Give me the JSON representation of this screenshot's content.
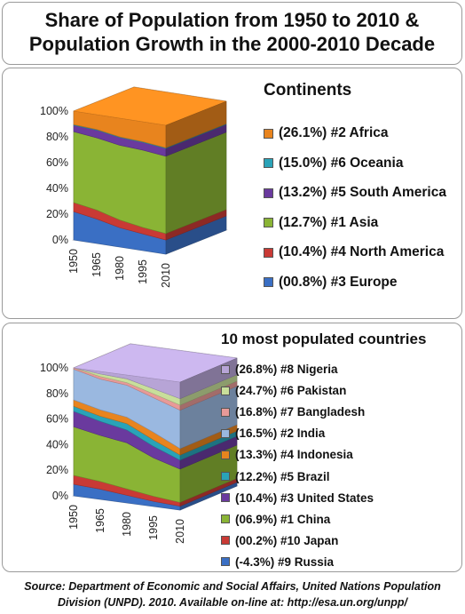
{
  "title": {
    "line1": "Share of Population from 1950 to 2010 &",
    "line2": "Population Growth in the 2000-2010 Decade"
  },
  "chart_data": [
    {
      "type": "area",
      "title": "Continents",
      "stacked_percent": true,
      "three_d": true,
      "x": [
        "1950",
        "1965",
        "1980",
        "1995",
        "2010"
      ],
      "y_ticks": [
        "0%",
        "20%",
        "40%",
        "60%",
        "80%",
        "100%"
      ],
      "ylim": [
        0,
        100
      ],
      "series": [
        {
          "name": "(00.8%) #3 Europe",
          "color": "#3a6fc4",
          "values": [
            22,
            19,
            15,
            13,
            11
          ]
        },
        {
          "name": "(10.4%) #4 North America",
          "color": "#c93a35",
          "values": [
            7,
            7,
            6,
            5,
            5
          ]
        },
        {
          "name": "(12.7%) #1 Asia",
          "color": "#8ab435",
          "values": [
            55,
            56,
            58,
            60,
            60
          ]
        },
        {
          "name": "(13.2%) #5 South America",
          "color": "#6a3a9e",
          "values": [
            5,
            6,
            6,
            6,
            6
          ]
        },
        {
          "name": "(15.0%) #6 Oceania",
          "color": "#2aa3b8",
          "values": [
            0.5,
            0.5,
            0.5,
            0.5,
            0.5
          ]
        },
        {
          "name": "(26.1%) #2 Africa",
          "color": "#e8841e",
          "values": [
            10.5,
            11.5,
            14.5,
            15.5,
            17.5
          ]
        }
      ],
      "legend_order": [
        "(26.1%) #2 Africa",
        "(15.0%) #6 Oceania",
        "(13.2%) #5 South America",
        "(12.7%) #1 Asia",
        "(10.4%) #4 North America",
        "(00.8%) #3 Europe"
      ]
    },
    {
      "type": "area",
      "title": "10 most populated countries",
      "stacked_percent": true,
      "three_d": true,
      "x": [
        "1950",
        "1965",
        "1980",
        "1995",
        "2010"
      ],
      "y_ticks": [
        "0%",
        "20%",
        "40%",
        "60%",
        "80%",
        "100%"
      ],
      "ylim": [
        0,
        100
      ],
      "series": [
        {
          "name": "(-4.3%) #9 Russia",
          "color": "#3a6fc4",
          "values": [
            9,
            8,
            6,
            4,
            3
          ]
        },
        {
          "name": "(00.2%) #10 Japan",
          "color": "#c93a35",
          "values": [
            7,
            6,
            5,
            4,
            3
          ]
        },
        {
          "name": "(06.9%) #1 China",
          "color": "#8ab435",
          "values": [
            38,
            36,
            36,
            30,
            26
          ]
        },
        {
          "name": "(10.4%) #3 United States",
          "color": "#6a3a9e",
          "values": [
            12,
            11,
            10,
            9,
            7
          ]
        },
        {
          "name": "(12.2%) #5 Brazil",
          "color": "#2aa3b8",
          "values": [
            4,
            4,
            5,
            5,
            4
          ]
        },
        {
          "name": "(13.3%) #4 Indonesia",
          "color": "#e8841e",
          "values": [
            5,
            5,
            5,
            6,
            5
          ]
        },
        {
          "name": "(16.5%) #2 India",
          "color": "#9ab8e0",
          "values": [
            24,
            24,
            25,
            27,
            30
          ]
        },
        {
          "name": "(16.8%) #7 Bangladesh",
          "color": "#e89a98",
          "values": [
            1,
            2,
            2,
            3,
            4
          ]
        },
        {
          "name": "(24.7%) #6 Pakistan",
          "color": "#c8df9a",
          "values": [
            0,
            2,
            3,
            4,
            5
          ]
        },
        {
          "name": "(26.8%) #8 Nigeria",
          "color": "#b7a4d6",
          "values": [
            0,
            2,
            3,
            8,
            13
          ]
        }
      ],
      "legend_order": [
        "(26.8%) #8 Nigeria",
        "(24.7%) #6 Pakistan",
        "(16.8%) #7 Bangladesh",
        "(16.5%) #2 India",
        "(13.3%) #4 Indonesia",
        "(12.2%) #5 Brazil",
        "(10.4%) #3 United States",
        "(06.9%) #1 China",
        "(00.2%) #10 Japan",
        "(-4.3%) #9 Russia"
      ]
    }
  ],
  "source": "Source: Department of Economic and Social Affairs, United Nations Population Division (UNPD). 2010. Available on-line at: http://esa.un.org/unpp/"
}
